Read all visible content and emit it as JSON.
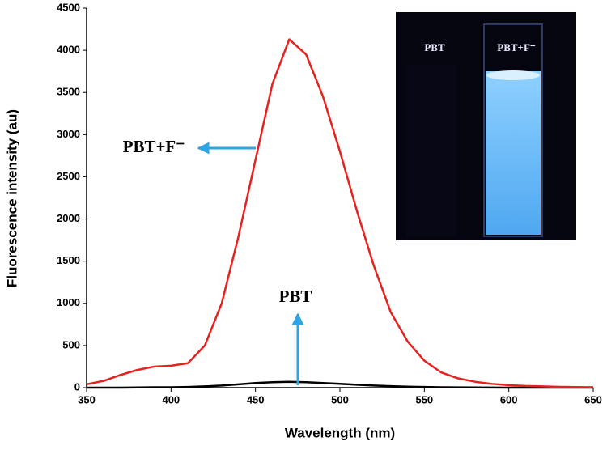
{
  "chart_data": {
    "type": "line",
    "x_label": "Wavelength (nm)",
    "y_label": "Fluorescence intensity (au)",
    "x": [
      350,
      360,
      370,
      380,
      390,
      400,
      410,
      420,
      430,
      440,
      450,
      460,
      470,
      480,
      490,
      500,
      510,
      520,
      530,
      540,
      550,
      560,
      570,
      580,
      590,
      600,
      610,
      620,
      630,
      640,
      650
    ],
    "series": [
      {
        "name": "PBT+F⁻",
        "color": "#e8211e",
        "values": [
          40,
          80,
          150,
          210,
          250,
          260,
          290,
          500,
          1000,
          1800,
          2700,
          3600,
          4130,
          3950,
          3450,
          2800,
          2100,
          1450,
          900,
          550,
          320,
          180,
          110,
          70,
          45,
          30,
          20,
          15,
          10,
          7,
          5
        ]
      },
      {
        "name": "PBT",
        "color": "#000000",
        "values": [
          0,
          0,
          0,
          2,
          5,
          5,
          8,
          15,
          25,
          40,
          55,
          65,
          70,
          65,
          55,
          45,
          35,
          25,
          18,
          12,
          8,
          5,
          3,
          2,
          1,
          0,
          0,
          0,
          0,
          0,
          0
        ]
      }
    ],
    "xlim": [
      350,
      650
    ],
    "xticks": [
      350,
      400,
      450,
      500,
      550,
      600,
      650
    ],
    "ylim": [
      0,
      4500
    ],
    "yticks": [
      0,
      500,
      1000,
      1500,
      2000,
      2500,
      3000,
      3500,
      4000,
      4500
    ],
    "annotations": [
      "PBT+F⁻",
      "PBT"
    ],
    "inset_labels": [
      "PBT",
      "PBT+F⁻"
    ],
    "arrow_color": "#2ea3e6"
  }
}
